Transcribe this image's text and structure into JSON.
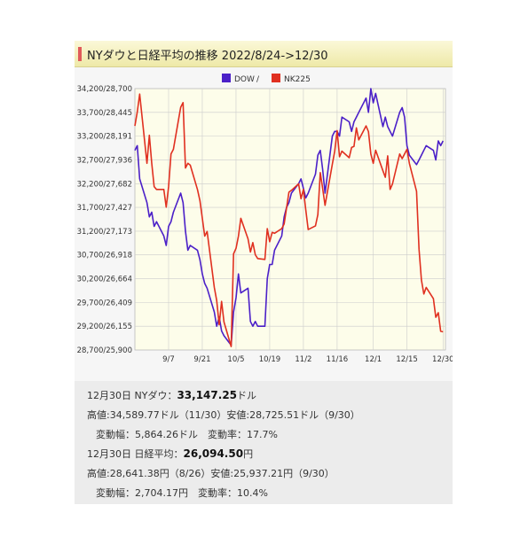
{
  "title": "NYダウと日経平均の推移 2022/8/24->12/30",
  "chart_data": {
    "type": "line",
    "y_ticks": [
      "34,200/28,700",
      "33,700/28,445",
      "33,200/28,191",
      "32,700/27,936",
      "32,200/27,682",
      "31,700/27,427",
      "31,200/27,173",
      "30,700/26,918",
      "30,200/26,664",
      "29,700/26,409",
      "29,200/26,155",
      "28,700/25,900"
    ],
    "dow_ylim": [
      28700,
      34200
    ],
    "nk_ylim": [
      25900,
      28700
    ],
    "x_labels": [
      {
        "label": "9/7",
        "day": 14
      },
      {
        "label": "9/21",
        "day": 28
      },
      {
        "label": "10/5",
        "day": 42
      },
      {
        "label": "10/19",
        "day": 56
      },
      {
        "label": "11/2",
        "day": 70
      },
      {
        "label": "11/16",
        "day": 84
      },
      {
        "label": "12/1",
        "day": 99
      },
      {
        "label": "12/15",
        "day": 113
      },
      {
        "label": "12/30",
        "day": 128
      }
    ],
    "x_range": [
      0,
      129
    ],
    "grid": true,
    "legend": "top-center",
    "series": [
      {
        "name": "DOW",
        "color": "#4b20c8",
        "points": [
          [
            0,
            32900
          ],
          [
            1,
            33000
          ],
          [
            2,
            32300
          ],
          [
            5,
            31800
          ],
          [
            6,
            31500
          ],
          [
            7,
            31600
          ],
          [
            8,
            31300
          ],
          [
            9,
            31400
          ],
          [
            12,
            31100
          ],
          [
            13,
            30900
          ],
          [
            14,
            31300
          ],
          [
            15,
            31400
          ],
          [
            16,
            31600
          ],
          [
            19,
            32000
          ],
          [
            20,
            31800
          ],
          [
            21,
            31200
          ],
          [
            22,
            30800
          ],
          [
            23,
            30900
          ],
          [
            26,
            30800
          ],
          [
            27,
            30600
          ],
          [
            28,
            30300
          ],
          [
            29,
            30100
          ],
          [
            30,
            30000
          ],
          [
            33,
            29500
          ],
          [
            34,
            29200
          ],
          [
            35,
            29400
          ],
          [
            36,
            29100
          ],
          [
            37,
            29000
          ],
          [
            40,
            28800
          ],
          [
            41,
            29500
          ],
          [
            42,
            29800
          ],
          [
            43,
            30300
          ],
          [
            44,
            29900
          ],
          [
            47,
            30000
          ],
          [
            48,
            29300
          ],
          [
            49,
            29200
          ],
          [
            50,
            29300
          ],
          [
            51,
            29200
          ],
          [
            54,
            29200
          ],
          [
            55,
            30200
          ],
          [
            56,
            30500
          ],
          [
            57,
            30500
          ],
          [
            58,
            30800
          ],
          [
            61,
            31100
          ],
          [
            62,
            31500
          ],
          [
            63,
            31700
          ],
          [
            64,
            31800
          ],
          [
            65,
            32000
          ],
          [
            68,
            32200
          ],
          [
            69,
            32300
          ],
          [
            70,
            32100
          ],
          [
            71,
            31900
          ],
          [
            72,
            32000
          ],
          [
            75,
            32400
          ],
          [
            76,
            32800
          ],
          [
            77,
            32900
          ],
          [
            78,
            32500
          ],
          [
            79,
            32000
          ],
          [
            82,
            33200
          ],
          [
            83,
            33300
          ],
          [
            84,
            33300
          ],
          [
            85,
            33200
          ],
          [
            86,
            33600
          ],
          [
            89,
            33500
          ],
          [
            90,
            33300
          ],
          [
            91,
            33500
          ],
          [
            92,
            33600
          ],
          [
            93,
            33700
          ],
          [
            96,
            34000
          ],
          [
            97,
            33700
          ],
          [
            98,
            34200
          ],
          [
            99,
            33900
          ],
          [
            100,
            34100
          ],
          [
            103,
            33400
          ],
          [
            104,
            33600
          ],
          [
            105,
            33400
          ],
          [
            106,
            33300
          ],
          [
            107,
            33200
          ],
          [
            110,
            33700
          ],
          [
            111,
            33800
          ],
          [
            112,
            33600
          ],
          [
            113,
            33000
          ],
          [
            114,
            32800
          ],
          [
            117,
            32600
          ],
          [
            118,
            32700
          ],
          [
            119,
            32800
          ],
          [
            120,
            32900
          ],
          [
            121,
            33000
          ],
          [
            124,
            32900
          ],
          [
            125,
            32700
          ],
          [
            126,
            33100
          ],
          [
            127,
            33000
          ],
          [
            128,
            33100
          ]
        ]
      },
      {
        "name": "NK225",
        "color": "#e03020",
        "points": [
          [
            0,
            28300
          ],
          [
            1,
            28450
          ],
          [
            2,
            28641
          ],
          [
            5,
            27900
          ],
          [
            6,
            28200
          ],
          [
            7,
            27900
          ],
          [
            8,
            27650
          ],
          [
            9,
            27620
          ],
          [
            12,
            27620
          ],
          [
            13,
            27430
          ],
          [
            14,
            27650
          ],
          [
            15,
            28000
          ],
          [
            16,
            28050
          ],
          [
            19,
            28500
          ],
          [
            20,
            28550
          ],
          [
            21,
            27850
          ],
          [
            22,
            27900
          ],
          [
            23,
            27880
          ],
          [
            26,
            27620
          ],
          [
            27,
            27500
          ],
          [
            28,
            27310
          ],
          [
            29,
            27120
          ],
          [
            30,
            27170
          ],
          [
            33,
            26570
          ],
          [
            34,
            26430
          ],
          [
            35,
            26170
          ],
          [
            36,
            26420
          ],
          [
            37,
            26200
          ],
          [
            40,
            25937
          ],
          [
            41,
            26930
          ],
          [
            42,
            26990
          ],
          [
            43,
            27120
          ],
          [
            44,
            27310
          ],
          [
            47,
            27090
          ],
          [
            48,
            26950
          ],
          [
            49,
            27050
          ],
          [
            50,
            26920
          ],
          [
            51,
            26880
          ],
          [
            54,
            26870
          ],
          [
            55,
            27200
          ],
          [
            56,
            27060
          ],
          [
            57,
            27160
          ],
          [
            58,
            27150
          ],
          [
            61,
            27200
          ],
          [
            62,
            27250
          ],
          [
            63,
            27420
          ],
          [
            64,
            27590
          ],
          [
            65,
            27610
          ],
          [
            68,
            27680
          ],
          [
            69,
            27520
          ],
          [
            70,
            27620
          ],
          [
            71,
            27400
          ],
          [
            72,
            27190
          ],
          [
            75,
            27230
          ],
          [
            76,
            27350
          ],
          [
            77,
            27800
          ],
          [
            78,
            27630
          ],
          [
            79,
            27450
          ],
          [
            82,
            27890
          ],
          [
            83,
            28030
          ],
          [
            84,
            28250
          ],
          [
            85,
            27970
          ],
          [
            86,
            28030
          ],
          [
            89,
            27960
          ],
          [
            90,
            28070
          ],
          [
            91,
            28080
          ],
          [
            92,
            28280
          ],
          [
            93,
            28150
          ],
          [
            96,
            28300
          ],
          [
            97,
            28240
          ],
          [
            98,
            28000
          ],
          [
            99,
            27900
          ],
          [
            100,
            28040
          ],
          [
            103,
            27820
          ],
          [
            104,
            27750
          ],
          [
            105,
            27980
          ],
          [
            106,
            27620
          ],
          [
            107,
            27680
          ],
          [
            110,
            28000
          ],
          [
            111,
            27950
          ],
          [
            112,
            28000
          ],
          [
            113,
            28050
          ],
          [
            114,
            27900
          ],
          [
            117,
            27600
          ],
          [
            118,
            26980
          ],
          [
            119,
            26650
          ],
          [
            120,
            26500
          ],
          [
            121,
            26570
          ],
          [
            124,
            26450
          ],
          [
            125,
            26250
          ],
          [
            126,
            26300
          ],
          [
            127,
            26100
          ],
          [
            128,
            26094.5
          ]
        ]
      }
    ]
  },
  "info": {
    "dow_date_label": "12月30日 NYダウ：",
    "dow_close": "33,147.25",
    "dow_unit": "ドル",
    "dow_range": "高値:34,589.77ドル（11/30）安値:28,725.51ドル（9/30）",
    "dow_change": "変動幅：5,864.26ドル　変動率：17.7%",
    "nk_date_label": "12月30日 日経平均：",
    "nk_close": "26,094.50",
    "nk_unit": "円",
    "nk_range": "高値:28,641.38円（8/26）安値:25,937.21円（9/30）",
    "nk_change": "変動幅：2,704.17円　変動率：10.4%"
  }
}
